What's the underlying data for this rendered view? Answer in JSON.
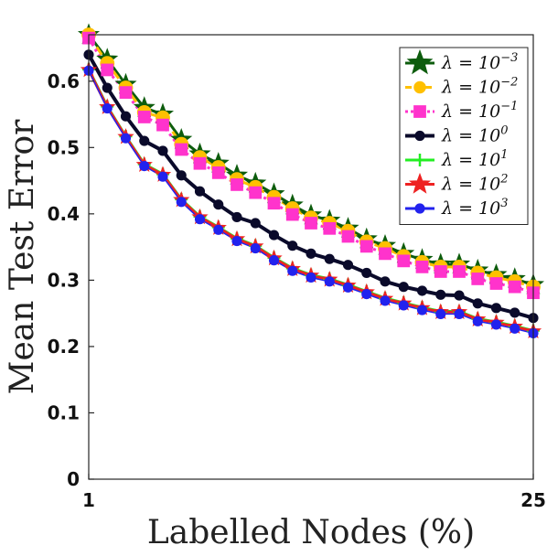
{
  "chart_data": {
    "type": "line",
    "xlabel": "Labelled Nodes (%)",
    "ylabel": "Mean Test Error",
    "xlim": [
      1,
      25
    ],
    "ylim": [
      0,
      0.67
    ],
    "xticks": [
      1,
      25
    ],
    "xtick_labels": [
      "1",
      "25"
    ],
    "yticks": [
      0,
      0.1,
      0.2,
      0.3,
      0.4,
      0.5,
      0.6
    ],
    "ytick_labels": [
      "0",
      "0.1",
      "0.2",
      "0.3",
      "0.4",
      "0.5",
      "0.6"
    ],
    "grid": false,
    "legend_position": "top-right",
    "x": [
      1,
      2,
      3,
      4,
      5,
      6,
      7,
      8,
      9,
      10,
      11,
      12,
      13,
      14,
      15,
      16,
      17,
      18,
      19,
      20,
      21,
      22,
      23,
      24,
      25
    ],
    "series": [
      {
        "name": "λ = 10^{-3}",
        "legend_base": "λ = 10",
        "legend_exp": "−3",
        "color": "#0d5c0d",
        "marker": "star",
        "line_style": "solid",
        "values": [
          0.67,
          0.633,
          0.595,
          0.56,
          0.55,
          0.512,
          0.49,
          0.476,
          0.458,
          0.446,
          0.43,
          0.413,
          0.398,
          0.39,
          0.378,
          0.362,
          0.352,
          0.34,
          0.331,
          0.324,
          0.324,
          0.315,
          0.308,
          0.302,
          0.293
        ]
      },
      {
        "name": "λ = 10^{-2}",
        "legend_base": "λ = 10",
        "legend_exp": "−2",
        "color": "#ffc000",
        "marker": "circle",
        "line_style": "dashed",
        "values": [
          0.67,
          0.627,
          0.59,
          0.553,
          0.545,
          0.505,
          0.485,
          0.47,
          0.452,
          0.44,
          0.425,
          0.408,
          0.394,
          0.386,
          0.374,
          0.358,
          0.348,
          0.336,
          0.327,
          0.32,
          0.32,
          0.311,
          0.304,
          0.298,
          0.29
        ]
      },
      {
        "name": "λ = 10^{-1}",
        "legend_base": "λ = 10",
        "legend_exp": "−1",
        "color": "#ff33cc",
        "marker": "square",
        "line_style": "dotted",
        "values": [
          0.665,
          0.617,
          0.583,
          0.546,
          0.534,
          0.497,
          0.476,
          0.462,
          0.444,
          0.432,
          0.416,
          0.399,
          0.386,
          0.378,
          0.366,
          0.351,
          0.34,
          0.329,
          0.32,
          0.313,
          0.313,
          0.302,
          0.295,
          0.29,
          0.281
        ]
      },
      {
        "name": "λ = 10^{0}",
        "legend_base": "λ = 10",
        "legend_exp": "0",
        "color": "#0a0a2a",
        "marker": "circle",
        "line_style": "solid",
        "values": [
          0.64,
          0.59,
          0.547,
          0.51,
          0.495,
          0.458,
          0.434,
          0.414,
          0.395,
          0.386,
          0.368,
          0.352,
          0.34,
          0.332,
          0.323,
          0.311,
          0.298,
          0.29,
          0.284,
          0.278,
          0.277,
          0.265,
          0.258,
          0.251,
          0.243
        ]
      },
      {
        "name": "λ = 10^{1}",
        "legend_base": "λ = 10",
        "legend_exp": "1",
        "color": "#22ee22",
        "marker": "plus",
        "line_style": "solid",
        "values": [
          0.618,
          0.562,
          0.517,
          0.475,
          0.46,
          0.422,
          0.396,
          0.38,
          0.363,
          0.352,
          0.334,
          0.318,
          0.308,
          0.302,
          0.293,
          0.283,
          0.273,
          0.266,
          0.259,
          0.253,
          0.253,
          0.242,
          0.237,
          0.231,
          0.224
        ]
      },
      {
        "name": "λ = 10^{2}",
        "legend_base": "λ = 10",
        "legend_exp": "2",
        "color": "#ee2222",
        "marker": "star",
        "line_style": "solid",
        "values": [
          0.617,
          0.561,
          0.516,
          0.474,
          0.459,
          0.421,
          0.395,
          0.379,
          0.362,
          0.351,
          0.333,
          0.317,
          0.307,
          0.301,
          0.292,
          0.282,
          0.272,
          0.265,
          0.258,
          0.252,
          0.252,
          0.241,
          0.236,
          0.23,
          0.223
        ]
      },
      {
        "name": "λ = 10^{3}",
        "legend_base": "λ = 10",
        "legend_exp": "3",
        "color": "#2222ee",
        "marker": "circle",
        "line_style": "solid",
        "values": [
          0.616,
          0.559,
          0.514,
          0.472,
          0.456,
          0.418,
          0.392,
          0.376,
          0.359,
          0.348,
          0.33,
          0.314,
          0.304,
          0.298,
          0.289,
          0.279,
          0.269,
          0.262,
          0.255,
          0.249,
          0.249,
          0.238,
          0.233,
          0.227,
          0.22
        ]
      }
    ]
  }
}
